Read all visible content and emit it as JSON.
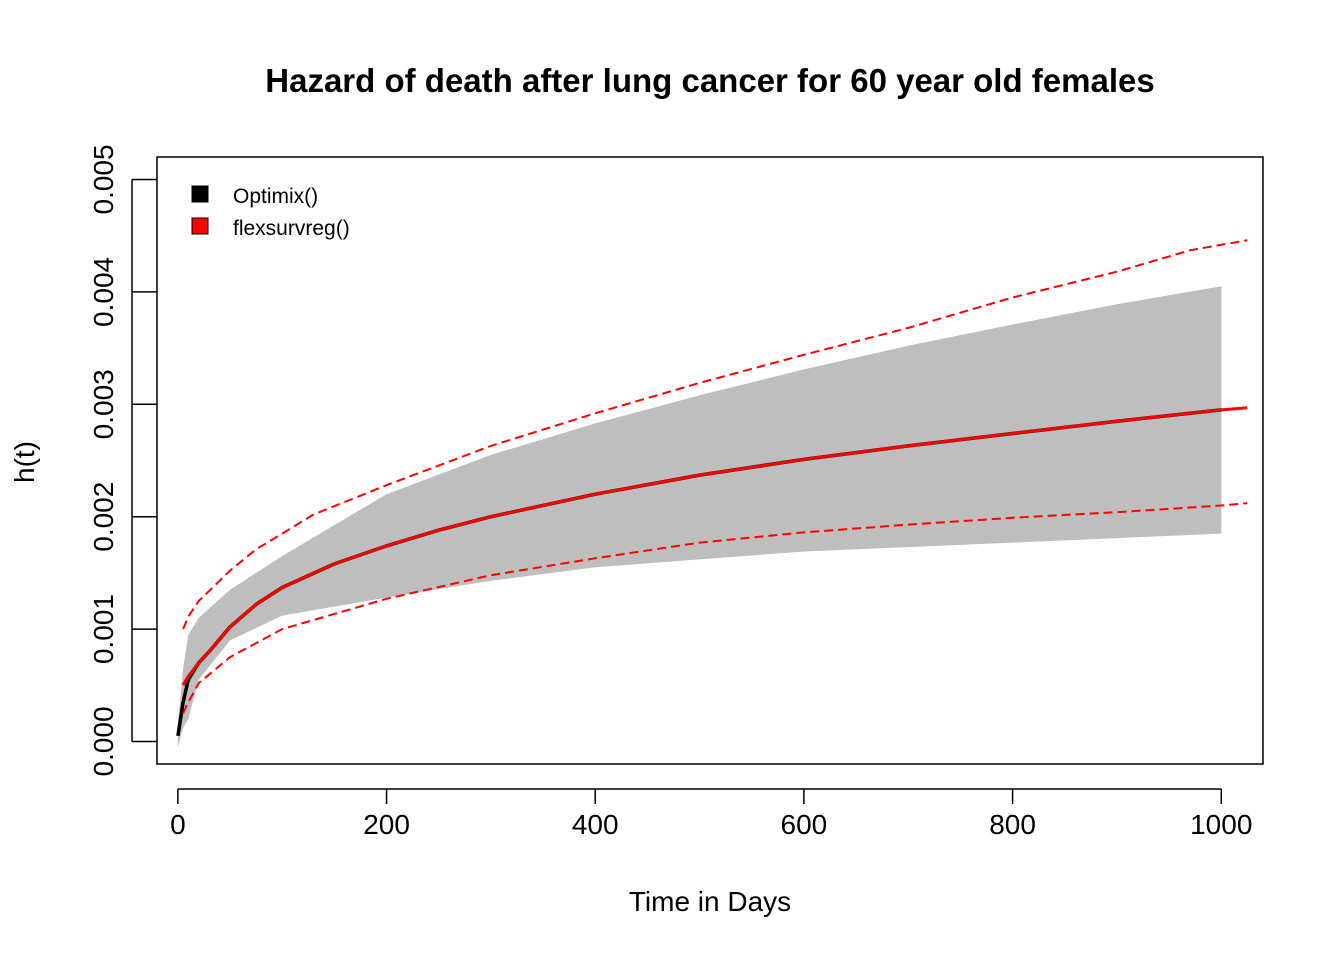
{
  "chart_data": {
    "type": "line",
    "title": "Hazard of death after lung cancer for 60 year old females",
    "xlabel": "Time in Days",
    "ylabel": "h(t)",
    "xlim": [
      -20,
      1040
    ],
    "ylim": [
      -0.0002,
      0.0052
    ],
    "x_ticks": [
      0,
      200,
      400,
      600,
      800,
      1000
    ],
    "x_tick_labels": [
      "0",
      "200",
      "400",
      "600",
      "800",
      "1000"
    ],
    "y_ticks": [
      0.0,
      0.001,
      0.002,
      0.003,
      0.004,
      0.005
    ],
    "y_tick_labels": [
      "0.000",
      "0.001",
      "0.002",
      "0.003",
      "0.004",
      "0.005"
    ],
    "grid": false,
    "legend": {
      "position": "top-left",
      "entries": [
        {
          "label": "Optimix()",
          "color": "#000000"
        },
        {
          "label": "flexsurvreg()",
          "color": "#ff0000"
        }
      ]
    },
    "band": {
      "color": "#bebebe",
      "x": [
        0,
        5,
        10,
        20,
        50,
        100,
        200,
        300,
        400,
        500,
        600,
        700,
        800,
        900,
        1000
      ],
      "lower": [
        -5e-05,
        0.00012,
        0.0002,
        0.00055,
        0.0009,
        0.00112,
        0.00128,
        0.00143,
        0.00155,
        0.00162,
        0.00169,
        0.00173,
        0.00177,
        0.00181,
        0.00185
      ],
      "upper": [
        0.00015,
        0.00065,
        0.00095,
        0.0011,
        0.00135,
        0.00165,
        0.0022,
        0.00255,
        0.00283,
        0.00308,
        0.00331,
        0.00352,
        0.00371,
        0.00389,
        0.00405
      ]
    },
    "series": [
      {
        "name": "Optimix()",
        "color": "#000000",
        "dash": "solid",
        "x": [
          0,
          5,
          10,
          20,
          30,
          50,
          75,
          100,
          150,
          200,
          250,
          300,
          400,
          500,
          600,
          700,
          800,
          900,
          1000
        ],
        "y": [
          5e-05,
          0.00035,
          0.00055,
          0.0007,
          0.0008,
          0.00102,
          0.00122,
          0.00137,
          0.00158,
          0.00174,
          0.00188,
          0.002,
          0.0022,
          0.00237,
          0.00251,
          0.00263,
          0.00274,
          0.00285,
          0.00295
        ]
      },
      {
        "name": "flexsurvreg()",
        "color": "#ff0000",
        "dash": "solid",
        "x": [
          5,
          10,
          20,
          30,
          50,
          75,
          100,
          150,
          200,
          250,
          300,
          400,
          500,
          600,
          700,
          800,
          900,
          1000,
          1025
        ],
        "y": [
          0.0005,
          0.00058,
          0.0007,
          0.0008,
          0.00102,
          0.00122,
          0.00137,
          0.00158,
          0.00174,
          0.00188,
          0.002,
          0.0022,
          0.00237,
          0.00251,
          0.00263,
          0.00274,
          0.00285,
          0.00295,
          0.00297
        ]
      },
      {
        "name": "",
        "color": "#ff0000",
        "dash": "dashed",
        "x": [
          5,
          10,
          20,
          50,
          75,
          100,
          130,
          200,
          300,
          400,
          500,
          600,
          700,
          800,
          900,
          970,
          1025
        ],
        "y": [
          0.001,
          0.00111,
          0.00125,
          0.00152,
          0.00171,
          0.00185,
          0.00202,
          0.00228,
          0.00263,
          0.00292,
          0.00319,
          0.00344,
          0.00368,
          0.00395,
          0.00418,
          0.00437,
          0.00446
        ]
      },
      {
        "name": "",
        "color": "#ff0000",
        "dash": "dashed",
        "x": [
          5,
          10,
          20,
          50,
          100,
          200,
          300,
          400,
          500,
          600,
          700,
          800,
          900,
          1000,
          1025
        ],
        "y": [
          0.00025,
          0.00035,
          0.00052,
          0.00075,
          0.001,
          0.00127,
          0.00148,
          0.00163,
          0.00177,
          0.00186,
          0.00193,
          0.00199,
          0.00204,
          0.0021,
          0.00212
        ]
      }
    ]
  }
}
